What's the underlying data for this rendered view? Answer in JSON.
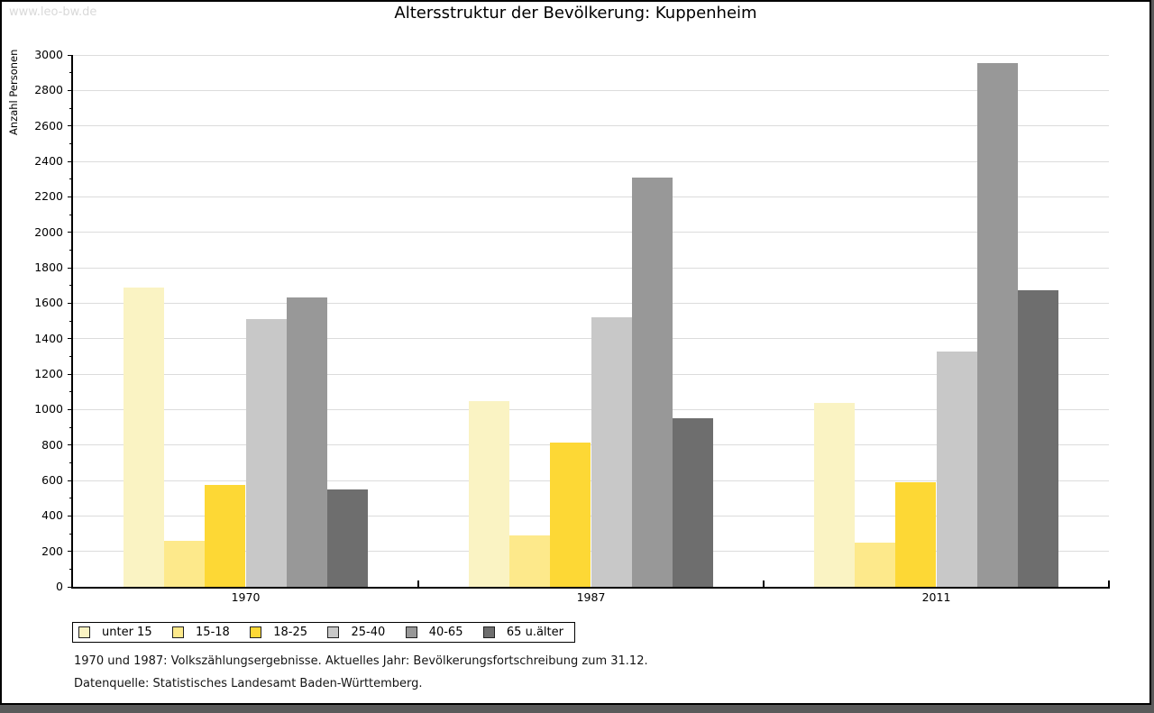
{
  "watermark": "www.leo-bw.de",
  "header": {
    "title": "Altersstruktur der Bevölkerung: Kuppenheim"
  },
  "chart_data": {
    "type": "bar",
    "title": "Altersstruktur der Bevölkerung: Kuppenheim",
    "xlabel": "",
    "ylabel": "Anzahl Personen",
    "categories": [
      "1970",
      "1987",
      "2011"
    ],
    "series": [
      {
        "name": "unter 15",
        "color": "#FAF3C3",
        "values": [
          1690,
          1045,
          1035
        ]
      },
      {
        "name": "15-18",
        "color": "#FDE98B",
        "values": [
          260,
          290,
          250
        ]
      },
      {
        "name": "18-25",
        "color": "#FDD835",
        "values": [
          575,
          815,
          590
        ]
      },
      {
        "name": "25-40",
        "color": "#C8C8C8",
        "values": [
          1510,
          1520,
          1325
        ]
      },
      {
        "name": "40-65",
        "color": "#989898",
        "values": [
          1630,
          2310,
          2955
        ]
      },
      {
        "name": "65 u.älter",
        "color": "#6E6E6E",
        "values": [
          550,
          950,
          1675
        ]
      }
    ],
    "ylim": [
      0,
      3000
    ],
    "ytick_step": 200,
    "minor_tick_step": 100,
    "grid": true,
    "legend_position": "bottom-left"
  },
  "footer": {
    "line1": "1970 und 1987: Volkszählungsergebnisse. Aktuelles Jahr: Bevölkerungsfortschreibung zum 31.12.",
    "line2": "Datenquelle: Statistisches Landesamt Baden-Württemberg."
  },
  "colors": {
    "grid": "#dcdcdc",
    "axis": "#000000",
    "watermark": "#d9d9d9",
    "background": "#ffffff",
    "shadow": "#5a5a5a"
  }
}
